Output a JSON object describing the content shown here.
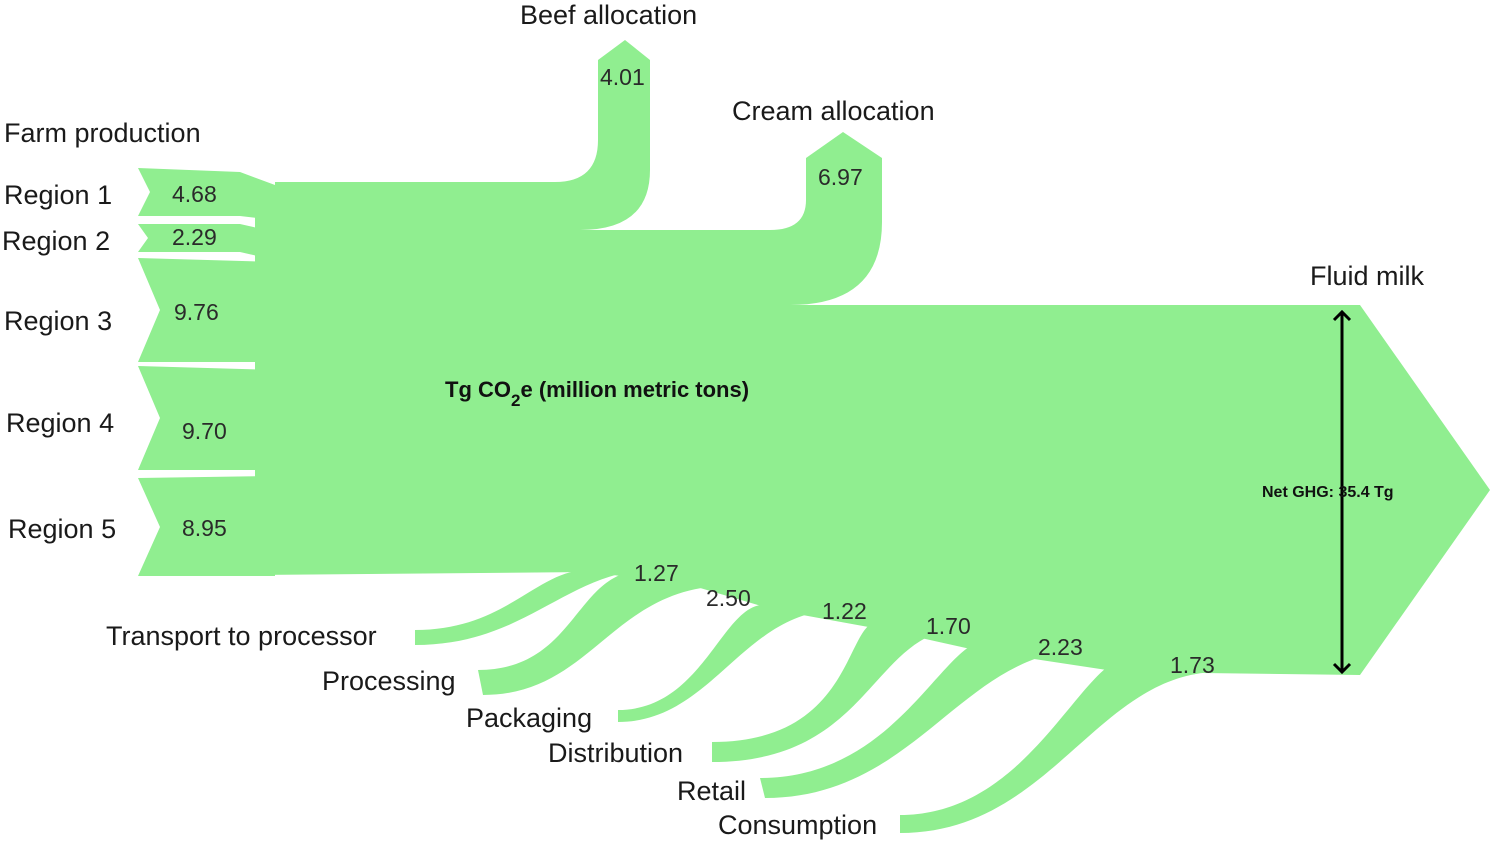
{
  "colors": {
    "flow": "#90ee90",
    "arrow": "#000000"
  },
  "diagram": {
    "farm_label": "Farm production",
    "regions": [
      {
        "name": "Region 1",
        "value": "4.68"
      },
      {
        "name": "Region 2",
        "value": "2.29"
      },
      {
        "name": "Region 3",
        "value": "9.76"
      },
      {
        "name": "Region 4",
        "value": "9.70"
      },
      {
        "name": "Region 5",
        "value": "8.95"
      }
    ],
    "allocations": [
      {
        "name": "Beef allocation",
        "value": "4.01"
      },
      {
        "name": "Cream allocation",
        "value": "6.97"
      }
    ],
    "units_prefix": "Tg CO",
    "units_sub": "2",
    "units_suffix": "e (million metric tons)",
    "output_label": "Fluid milk",
    "net_label": "Net GHG: 35.4 Tg",
    "stages": [
      {
        "name": "Transport to processor",
        "value": "1.27"
      },
      {
        "name": "Processing",
        "value": "2.50"
      },
      {
        "name": "Packaging",
        "value": "1.22"
      },
      {
        "name": "Distribution",
        "value": "1.70"
      },
      {
        "name": "Retail",
        "value": "2.23"
      },
      {
        "name": "Consumption",
        "value": "1.73"
      }
    ]
  }
}
